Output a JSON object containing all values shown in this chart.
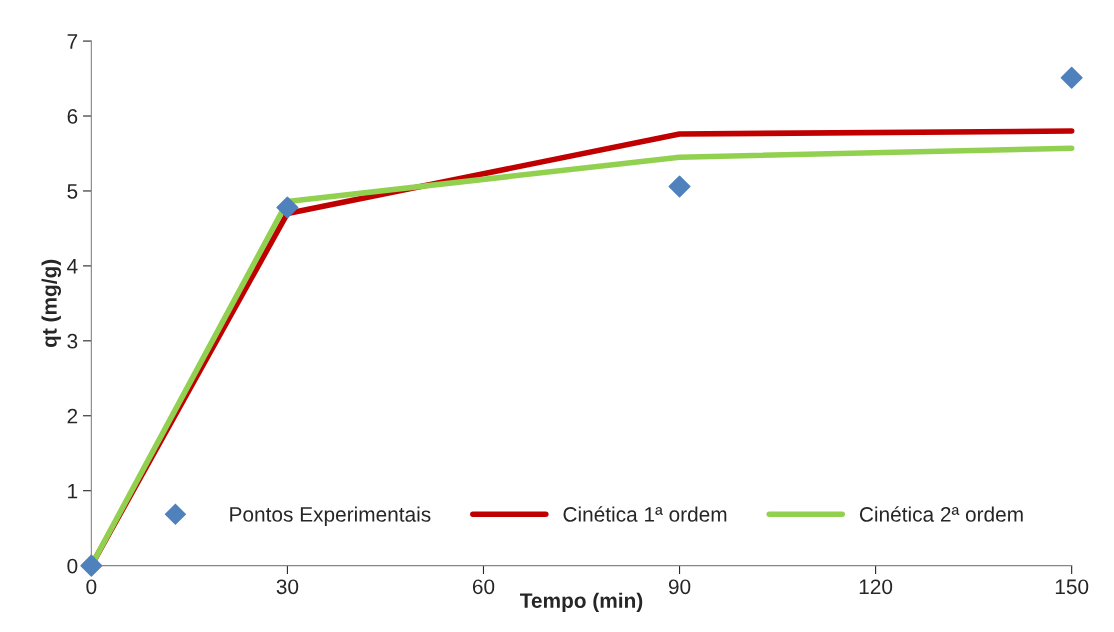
{
  "chart_data": {
    "type": "line",
    "xlabel": "Tempo (min)",
    "ylabel": "qt (mg/g)",
    "x": [
      0,
      30,
      90,
      150
    ],
    "series": [
      {
        "name": "Pontos Experimentais",
        "type": "scatter",
        "color": "#4f81bd",
        "marker": "diamond",
        "values": [
          0,
          4.78,
          5.06,
          6.51
        ]
      },
      {
        "name": "Cinética 1ª ordem",
        "color": "#c00000",
        "values": [
          0,
          4.7,
          5.76,
          5.8
        ]
      },
      {
        "name": "Cinética 2ª ordem",
        "color": "#92d050",
        "values": [
          0,
          4.86,
          5.45,
          5.57
        ]
      }
    ],
    "xlim": [
      0,
      150
    ],
    "xticks": [
      0,
      30,
      60,
      90,
      120,
      150
    ],
    "ylim": [
      0,
      7
    ],
    "yticks": [
      0,
      1,
      2,
      3,
      4,
      5,
      6,
      7
    ],
    "grid": false,
    "legend": "bottom"
  }
}
